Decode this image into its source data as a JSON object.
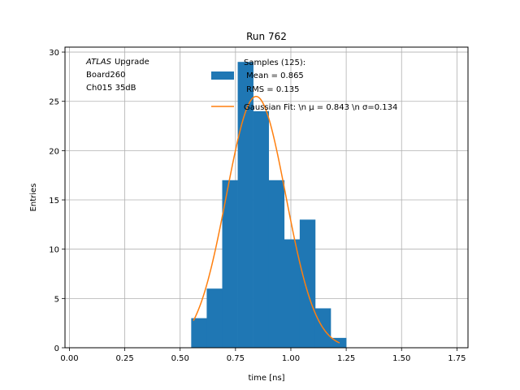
{
  "chart_data": {
    "type": "bar",
    "title": "Run 762",
    "xlabel": "time [ns]",
    "ylabel": "Entries",
    "xlim": [
      -0.02,
      1.8
    ],
    "ylim": [
      0,
      30.5
    ],
    "xticks": [
      0.0,
      0.25,
      0.5,
      0.75,
      1.0,
      1.25,
      1.5,
      1.75
    ],
    "xtick_labels": [
      "0.00",
      "0.25",
      "0.50",
      "0.75",
      "1.00",
      "1.25",
      "1.50",
      "1.75"
    ],
    "yticks": [
      0,
      5,
      10,
      15,
      20,
      25,
      30
    ],
    "ytick_labels": [
      "0",
      "5",
      "10",
      "15",
      "20",
      "25",
      "30"
    ],
    "grid": true,
    "annotation": {
      "lines": [
        "Upgrade",
        "Board260",
        "Ch015 35dB"
      ],
      "italic_prefix": "ATLAS"
    },
    "legend": {
      "placement": "top-right",
      "entries": [
        {
          "kind": "histogram",
          "lines": [
            "Samples (125):",
            " Mean = 0.865",
            " RMS = 0.135"
          ]
        },
        {
          "kind": "fit",
          "lines": [
            "Gaussian Fit: \\n μ = 0.843 \\n σ=0.134"
          ]
        }
      ]
    },
    "histogram": {
      "name": "Samples (125):",
      "color": "#1f77b4",
      "bin_edges": [
        0.55,
        0.62,
        0.69,
        0.76,
        0.83,
        0.9,
        0.97,
        1.04,
        1.11,
        1.18,
        1.25
      ],
      "values": [
        3,
        6,
        17,
        29,
        24,
        17,
        11,
        13,
        4,
        1
      ],
      "mean": 0.865,
      "rms": 0.135
    },
    "fit": {
      "name": "Gaussian Fit",
      "color": "#ff7f0e",
      "mu": 0.843,
      "sigma": 0.134,
      "amplitude": 25.5,
      "x_range": [
        0.56,
        1.22
      ]
    }
  }
}
